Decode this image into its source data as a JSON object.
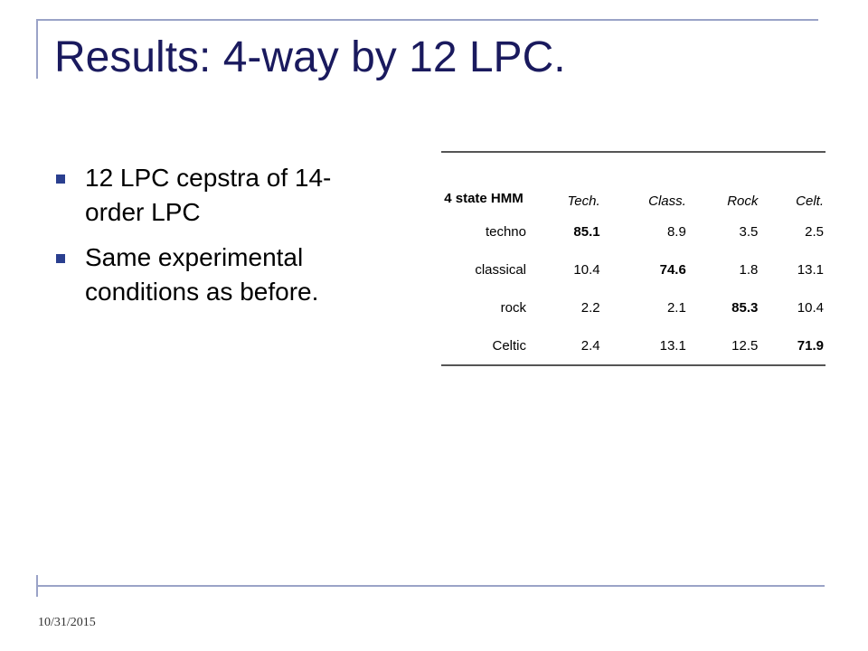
{
  "title": "Results: 4-way by 12 LPC.",
  "bullets": [
    "12 LPC cepstra of 14-order LPC",
    "Same experimental conditions as before."
  ],
  "table": {
    "corner": "4 state HMM",
    "columns": [
      "Tech.",
      "Class.",
      "Rock",
      "Celt."
    ],
    "rows": [
      {
        "label": "techno",
        "cells": [
          "85.1",
          "8.9",
          "3.5",
          "2.5"
        ]
      },
      {
        "label": "classical",
        "cells": [
          "10.4",
          "74.6",
          "1.8",
          "13.1"
        ]
      },
      {
        "label": "rock",
        "cells": [
          "2.2",
          "2.1",
          "85.3",
          "10.4"
        ]
      },
      {
        "label": "Celtic",
        "cells": [
          "2.4",
          "13.1",
          "12.5",
          "71.9"
        ]
      }
    ]
  },
  "footer": {
    "date": "10/31/2015"
  }
}
